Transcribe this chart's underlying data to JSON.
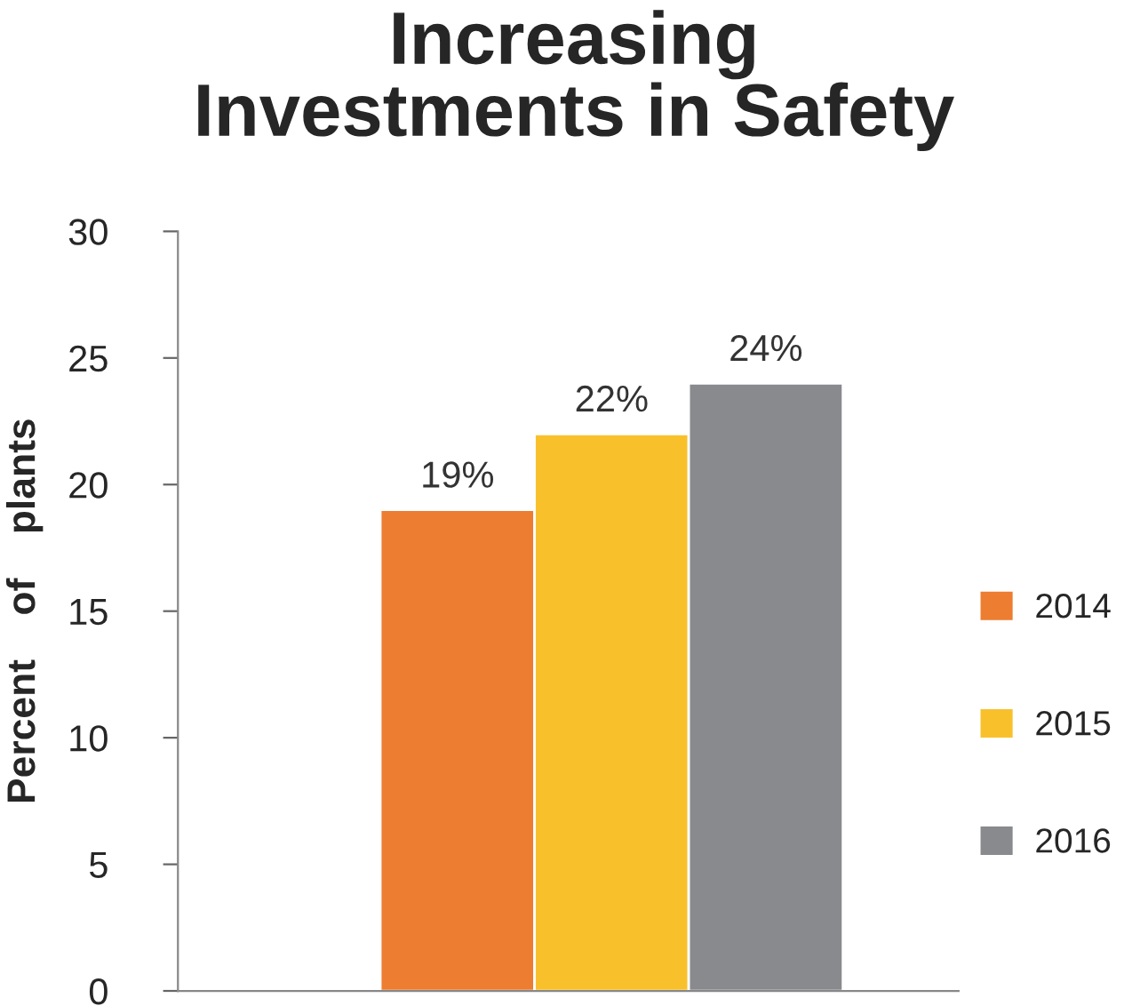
{
  "chart_data": {
    "type": "bar",
    "title": "Increasing\nInvestments in Safety",
    "ylabel": "Percent    of    plants",
    "categories": [
      null
    ],
    "series": [
      {
        "name": "2014",
        "color": "#ed7d31",
        "values": [
          19
        ],
        "value_labels": [
          "19%"
        ]
      },
      {
        "name": "2015",
        "color": "#f8c12c",
        "values": [
          22
        ],
        "value_labels": [
          "22%"
        ]
      },
      {
        "name": "2016",
        "color": "#898a8e",
        "values": [
          24
        ],
        "value_labels": [
          "24%"
        ]
      }
    ],
    "ylim": [
      0,
      30
    ],
    "yticks": [
      0,
      5,
      10,
      15,
      20,
      25,
      30
    ],
    "grid": false,
    "legend": "right"
  }
}
